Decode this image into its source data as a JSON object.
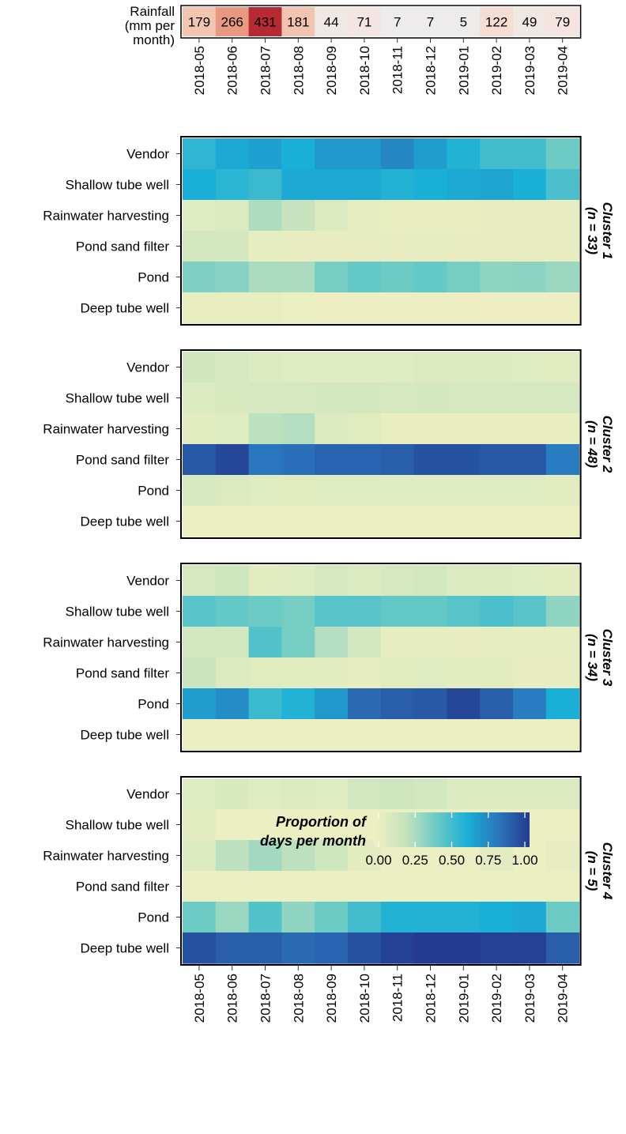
{
  "chart_data": {
    "type": "heatmap",
    "months": [
      "2018-05",
      "2018-06",
      "2018-07",
      "2018-08",
      "2018-09",
      "2018-10",
      "2018-11",
      "2018-12",
      "2019-01",
      "2019-02",
      "2019-03",
      "2019-04"
    ],
    "rainfall": {
      "label": "Rainfall\n(mm per\nmonth)",
      "values": [
        179,
        266,
        431,
        181,
        44,
        71,
        7,
        7,
        5,
        122,
        49,
        79
      ]
    },
    "sources": [
      "Vendor",
      "Shallow tube well",
      "Rainwater harvesting",
      "Pond sand filter",
      "Pond",
      "Deep tube well"
    ],
    "clusters": [
      {
        "title": "Cluster 1",
        "n_label": "(n = 33)",
        "values": [
          [
            0.55,
            0.62,
            0.65,
            0.6,
            0.68,
            0.68,
            0.74,
            0.66,
            0.58,
            0.5,
            0.5,
            0.4
          ],
          [
            0.6,
            0.56,
            0.52,
            0.62,
            0.62,
            0.62,
            0.58,
            0.6,
            0.62,
            0.64,
            0.6,
            0.48
          ],
          [
            0.08,
            0.1,
            0.25,
            0.2,
            0.1,
            0.05,
            0.03,
            0.03,
            0.03,
            0.04,
            0.04,
            0.04
          ],
          [
            0.13,
            0.13,
            0.05,
            0.04,
            0.04,
            0.04,
            0.04,
            0.05,
            0.04,
            0.04,
            0.04,
            0.04
          ],
          [
            0.36,
            0.34,
            0.26,
            0.26,
            0.38,
            0.42,
            0.4,
            0.42,
            0.38,
            0.32,
            0.33,
            0.3
          ],
          [
            0.03,
            0.03,
            0.03,
            0.02,
            0.01,
            0.01,
            0.01,
            0.01,
            0.01,
            0.01,
            0.01,
            0.01
          ]
        ]
      },
      {
        "title": "Cluster 2",
        "n_label": "(n = 48)",
        "values": [
          [
            0.15,
            0.12,
            0.1,
            0.08,
            0.08,
            0.08,
            0.08,
            0.09,
            0.09,
            0.09,
            0.08,
            0.07
          ],
          [
            0.1,
            0.11,
            0.12,
            0.12,
            0.13,
            0.13,
            0.12,
            0.13,
            0.12,
            0.12,
            0.12,
            0.12
          ],
          [
            0.06,
            0.08,
            0.22,
            0.24,
            0.1,
            0.07,
            0.03,
            0.03,
            0.03,
            0.03,
            0.03,
            0.03
          ],
          [
            0.9,
            0.96,
            0.8,
            0.82,
            0.86,
            0.86,
            0.88,
            0.92,
            0.92,
            0.9,
            0.9,
            0.78
          ],
          [
            0.12,
            0.1,
            0.08,
            0.07,
            0.08,
            0.08,
            0.08,
            0.08,
            0.08,
            0.08,
            0.08,
            0.06
          ],
          [
            0.02,
            0.02,
            0.02,
            0.02,
            0.02,
            0.02,
            0.02,
            0.02,
            0.02,
            0.02,
            0.02,
            0.02
          ]
        ]
      },
      {
        "title": "Cluster 3",
        "n_label": "(n = 34)",
        "values": [
          [
            0.12,
            0.16,
            0.06,
            0.08,
            0.12,
            0.1,
            0.12,
            0.14,
            0.1,
            0.1,
            0.08,
            0.06
          ],
          [
            0.45,
            0.42,
            0.4,
            0.38,
            0.45,
            0.45,
            0.42,
            0.42,
            0.45,
            0.48,
            0.45,
            0.32
          ],
          [
            0.14,
            0.13,
            0.46,
            0.38,
            0.24,
            0.14,
            0.05,
            0.05,
            0.04,
            0.05,
            0.05,
            0.05
          ],
          [
            0.18,
            0.1,
            0.07,
            0.06,
            0.06,
            0.05,
            0.06,
            0.08,
            0.06,
            0.06,
            0.04,
            0.04
          ],
          [
            0.66,
            0.72,
            0.52,
            0.58,
            0.68,
            0.84,
            0.88,
            0.9,
            0.96,
            0.88,
            0.78,
            0.6
          ],
          [
            0.02,
            0.02,
            0.02,
            0.02,
            0.02,
            0.02,
            0.02,
            0.02,
            0.02,
            0.02,
            0.02,
            0.02
          ]
        ]
      },
      {
        "title": "Cluster 4",
        "n_label": "(n = 5)",
        "values": [
          [
            0.08,
            0.11,
            0.08,
            0.1,
            0.08,
            0.14,
            0.16,
            0.14,
            0.1,
            0.1,
            0.1,
            0.1
          ],
          [
            0.06,
            0.02,
            0.02,
            0.02,
            0.02,
            0.02,
            0.02,
            0.02,
            0.02,
            0.02,
            0.02,
            0.02
          ],
          [
            0.1,
            0.22,
            0.28,
            0.22,
            0.16,
            0.06,
            0.02,
            0.02,
            0.02,
            0.06,
            0.02,
            0.04
          ],
          [
            0.02,
            0.02,
            0.02,
            0.02,
            0.02,
            0.02,
            0.02,
            0.02,
            0.02,
            0.02,
            0.02,
            0.02
          ],
          [
            0.4,
            0.3,
            0.46,
            0.32,
            0.4,
            0.5,
            0.58,
            0.58,
            0.58,
            0.6,
            0.62,
            0.4
          ],
          [
            0.92,
            0.88,
            0.88,
            0.84,
            0.86,
            0.92,
            0.98,
            1.0,
            1.0,
            0.98,
            0.98,
            0.88
          ]
        ]
      }
    ],
    "legend": {
      "title": "Proportion of\ndays per month",
      "ticks": [
        "0.00",
        "0.25",
        "0.50",
        "0.75",
        "1.00"
      ],
      "range": [
        0,
        1
      ]
    },
    "rainfall_colors": [
      "#ececec",
      "#f7e3db",
      "#f0b59c",
      "#e07a62",
      "#b62a33"
    ],
    "proportion_colors": [
      "#eff0c2",
      "#c6e3bd",
      "#6ccbc5",
      "#1aafd6",
      "#2a76bc",
      "#243b8f"
    ]
  }
}
